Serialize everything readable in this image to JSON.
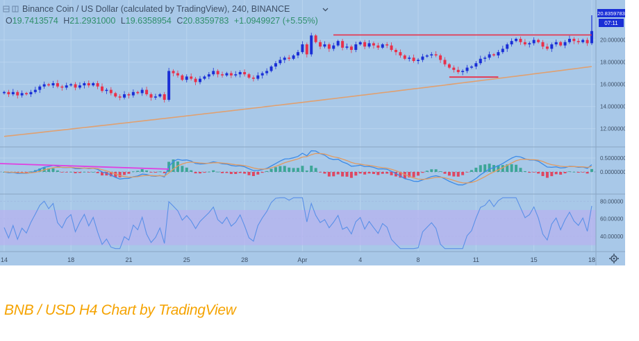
{
  "header": {
    "title": "Binance Coin / US Dollar (calculated by TradingView), 240, BINANCE",
    "ohlc": {
      "open_label": "O",
      "open": "19.7413574",
      "high_label": "H",
      "high": "21.2931000",
      "low_label": "L",
      "low": "19.6358954",
      "close_label": "C",
      "close": "20.8359783",
      "change": "+1.0949927 (+5.55%)"
    }
  },
  "price_badge": {
    "value": "20.8359783",
    "countdown": "07:11"
  },
  "caption": "BNB / USD H4 Chart by TradingView",
  "colors": {
    "background": "#a8c8e8",
    "up_candle": "#1a2fd6",
    "down_candle": "#e8304a",
    "moving_average": "#e0a070",
    "resistance_line": "#e8304a",
    "macd_trendline": "#e040e0",
    "macd_line": "#3a8ae8",
    "signal_line": "#e09a60",
    "histogram_up": "#2aa088",
    "histogram_down": "#e8304a",
    "rsi_line": "#5a90e8",
    "rsi_band": "#b8b0f0",
    "caption": "#f5a300"
  },
  "chart_data": [
    {
      "type": "candlestick",
      "panel": "price",
      "y_ticks": [
        "20.0000000",
        "18.0000000",
        "16.0000000",
        "14.0000000",
        "12.0000000"
      ],
      "ylim": [
        10.6,
        21.1
      ],
      "x_ticks": [
        "14",
        "18",
        "21",
        "25",
        "28",
        "Apr",
        "4",
        "8",
        "11",
        "15",
        "18"
      ],
      "x_tick_positions": [
        0,
        15,
        28,
        41,
        54,
        67,
        80,
        93,
        106,
        119,
        132
      ],
      "closes": [
        15.3,
        15.1,
        15.3,
        15.0,
        15.2,
        15.1,
        15.3,
        15.5,
        15.8,
        16.0,
        15.9,
        16.1,
        15.8,
        15.7,
        15.9,
        16.0,
        15.7,
        15.9,
        16.1,
        15.9,
        16.1,
        15.8,
        15.4,
        15.5,
        15.2,
        14.9,
        14.8,
        15.1,
        15.0,
        15.3,
        15.2,
        15.5,
        15.1,
        14.8,
        14.9,
        15.1,
        14.6,
        17.2,
        17.0,
        16.8,
        16.4,
        16.7,
        16.5,
        16.2,
        16.5,
        16.7,
        16.9,
        17.2,
        16.9,
        16.8,
        17.0,
        16.8,
        16.9,
        17.1,
        16.9,
        16.6,
        16.5,
        16.8,
        17.0,
        17.2,
        17.6,
        17.9,
        18.2,
        18.4,
        18.3,
        18.6,
        18.9,
        19.6,
        18.7,
        20.4,
        19.8,
        19.4,
        19.6,
        19.2,
        19.5,
        19.9,
        19.3,
        19.4,
        19.1,
        19.6,
        19.8,
        19.4,
        19.7,
        19.5,
        19.3,
        19.6,
        19.5,
        19.1,
        18.9,
        18.6,
        18.3,
        18.4,
        18.1,
        18.2,
        18.5,
        18.6,
        18.7,
        18.6,
        18.2,
        17.8,
        17.5,
        17.3,
        17.1,
        17.2,
        17.5,
        17.6,
        17.9,
        18.3,
        18.4,
        18.7,
        18.6,
        18.9,
        19.2,
        19.6,
        19.9,
        20.1,
        19.8,
        19.6,
        19.7,
        20.0,
        19.8,
        19.4,
        19.2,
        19.6,
        19.8,
        19.5,
        19.8,
        20.1,
        19.9,
        19.8,
        20.0,
        19.7,
        20.8
      ],
      "moving_average": {
        "start": 11.3,
        "end": 17.6
      },
      "resistance_level": 20.45,
      "support_segment": {
        "level": 16.65,
        "from_index": 100,
        "to_index": 111
      }
    },
    {
      "type": "macd",
      "panel": "macd",
      "y_ticks": [
        "0.5000000",
        "0.0000000"
      ],
      "ylim": [
        -0.7,
        0.8
      ]
    },
    {
      "type": "rsi",
      "panel": "rsi",
      "y_ticks": [
        "80.00000",
        "60.00000",
        "40.00000"
      ],
      "ylim": [
        25,
        85
      ],
      "band": [
        30,
        70
      ]
    }
  ]
}
